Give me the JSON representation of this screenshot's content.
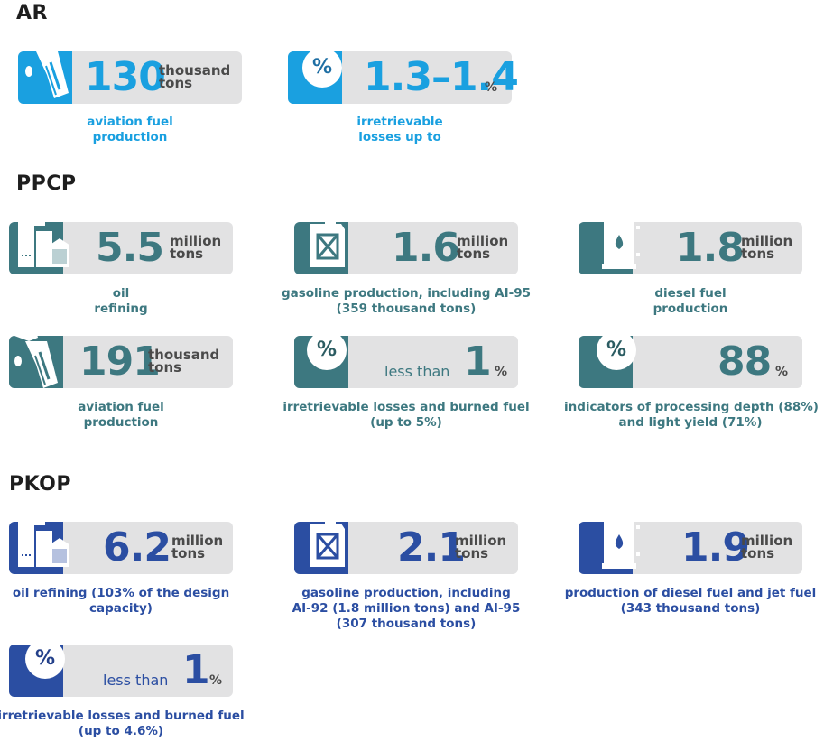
{
  "sections": {
    "ar": {
      "title": "AR",
      "cards": [
        {
          "value": "130",
          "unit_line1": "thousand",
          "unit_line2": "tons",
          "caption_lines": [
            "aviation fuel",
            "production"
          ],
          "icon": "fuel-nozzle-icon"
        },
        {
          "value": "1.3–1.4",
          "unit_line1": "%",
          "caption_lines": [
            "irretrievable",
            "losses up to"
          ],
          "icon": "percent-icon"
        }
      ]
    },
    "ppcp": {
      "title": "PPCP",
      "cards": [
        {
          "value": "5.5",
          "unit_line1": "million",
          "unit_line2": "tons",
          "caption_lines": [
            "oil",
            "refining"
          ],
          "icon": "refinery-icon"
        },
        {
          "value": "1.6",
          "unit_line1": "million",
          "unit_line2": "tons",
          "caption_lines": [
            "gasoline production, including AI-95",
            "(359 thousand tons)"
          ],
          "icon": "jerrycan-icon"
        },
        {
          "value": "1.8",
          "unit_line1": "million",
          "unit_line2": "tons",
          "caption_lines": [
            "diesel fuel",
            "production"
          ],
          "icon": "oil-barrel-icon"
        },
        {
          "value": "191",
          "unit_line1": "thousand",
          "unit_line2": "tons",
          "caption_lines": [
            "aviation fuel",
            "production"
          ],
          "icon": "fuel-nozzle-icon"
        },
        {
          "prefix": "less than",
          "value": "1",
          "unit_line1": "%",
          "caption_lines": [
            "irretrievable losses and burned fuel",
            "(up to 5%)"
          ],
          "icon": "percent-icon"
        },
        {
          "value": "88",
          "unit_line1": "%",
          "caption_lines": [
            "indicators of processing depth (88%)",
            "and light yield (71%)"
          ],
          "icon": "percent-icon"
        }
      ]
    },
    "pkop": {
      "title": "PKOP",
      "cards": [
        {
          "value": "6.2",
          "unit_line1": "million",
          "unit_line2": "tons",
          "caption_lines": [
            "oil refining (103% of the design",
            "capacity)"
          ],
          "icon": "refinery-icon"
        },
        {
          "value": "2.1",
          "unit_line1": "million",
          "unit_line2": "tons",
          "caption_lines": [
            "gasoline production, including",
            "AI-92 (1.8 million tons) and AI-95",
            "(307 thousand tons)"
          ],
          "icon": "jerrycan-icon"
        },
        {
          "value": "1.9",
          "unit_line1": "million",
          "unit_line2": "tons",
          "caption_lines": [
            "production of diesel fuel and jet fuel",
            "(343 thousand tons)"
          ],
          "icon": "oil-barrel-icon"
        },
        {
          "prefix": "less than",
          "value": "1",
          "unit_line1": "%",
          "caption_lines": [
            "irretrievable losses and burned fuel",
            "(up to 4.6%)"
          ],
          "icon": "percent-icon"
        }
      ]
    }
  },
  "percent_symbol": "%",
  "colors": {
    "ar": "#1aa0e0",
    "ppcp": "#3d7880",
    "pkop": "#2b4ea2",
    "card_bg": "#e2e2e3"
  }
}
